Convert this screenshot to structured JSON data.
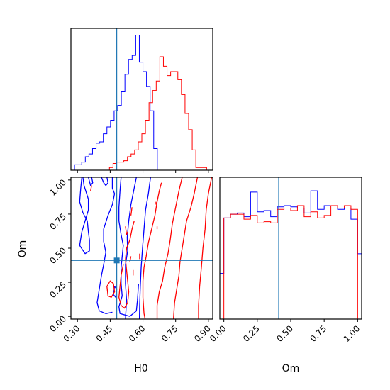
{
  "colors": {
    "blue": "#0000ff",
    "red": "#ff0000",
    "truth": "#1f77b4",
    "frame": "#000000"
  },
  "chart_data": [
    {
      "type": "histogram",
      "panel": "H0-marginal",
      "x": "H0",
      "xlim": [
        0.27,
        0.92
      ],
      "ylim": [
        0,
        1.05
      ],
      "truth": 0.48,
      "series": [
        {
          "color": "blue",
          "bins": [
            0.27,
            0.2865,
            0.303,
            0.3195,
            0.336,
            0.3525,
            0.369,
            0.3855,
            0.402,
            0.4185,
            0.435,
            0.4515,
            0.468,
            0.4845,
            0.501,
            0.5175,
            0.534,
            0.5505,
            0.567,
            0.5835,
            0.6,
            0.6165,
            0.633,
            0.6495,
            0.666
          ],
          "values": [
            0.0,
            0.04,
            0.04,
            0.06,
            0.1,
            0.12,
            0.16,
            0.2,
            0.21,
            0.27,
            0.32,
            0.37,
            0.44,
            0.48,
            0.58,
            0.71,
            0.82,
            0.85,
            1.0,
            0.8,
            0.73,
            0.62,
            0.44,
            0.16,
            0.0
          ]
        },
        {
          "color": "red",
          "bins": [
            0.43,
            0.4465,
            0.463,
            0.4795,
            0.496,
            0.5125,
            0.529,
            0.5455,
            0.562,
            0.5785,
            0.595,
            0.6115,
            0.628,
            0.6445,
            0.661,
            0.6775,
            0.694,
            0.7105,
            0.727,
            0.7435,
            0.76,
            0.7765,
            0.793,
            0.8095,
            0.826,
            0.8425,
            0.859,
            0.8755,
            0.892
          ],
          "values": [
            0.0,
            0.02,
            0.05,
            0.06,
            0.06,
            0.07,
            0.1,
            0.12,
            0.15,
            0.21,
            0.27,
            0.37,
            0.5,
            0.59,
            0.66,
            0.84,
            0.77,
            0.7,
            0.73,
            0.73,
            0.67,
            0.56,
            0.42,
            0.3,
            0.15,
            0.02,
            0.02,
            0.02,
            0.0
          ]
        }
      ]
    },
    {
      "type": "contour",
      "panel": "H0-Om-2d",
      "xlabel": "H0",
      "ylabel": "Om",
      "xlim": [
        0.27,
        0.92
      ],
      "ylim": [
        -0.02,
        1.02
      ],
      "xticks": [
        "0.30",
        "0.45",
        "0.60",
        "0.75",
        "0.90"
      ],
      "yticks": [
        "0.00",
        "0.25",
        "0.50",
        "0.75",
        "1.00"
      ],
      "truth": {
        "x": 0.48,
        "y": 0.41
      },
      "series": [
        {
          "color": "blue",
          "contours": [
            [
              [
                0.635,
                1.02
              ],
              [
                0.625,
                0.9
              ],
              [
                0.612,
                0.78
              ],
              [
                0.605,
                0.64
              ],
              [
                0.598,
                0.5
              ],
              [
                0.592,
                0.36
              ],
              [
                0.588,
                0.22
              ],
              [
                0.585,
                0.08
              ],
              [
                0.584,
                -0.02
              ]
            ],
            [
              [
                0.57,
                1.02
              ],
              [
                0.56,
                0.94
              ],
              [
                0.545,
                0.82
              ],
              [
                0.535,
                0.7
              ],
              [
                0.528,
                0.58
              ],
              [
                0.53,
                0.48
              ],
              [
                0.52,
                0.38
              ],
              [
                0.52,
                0.24
              ],
              [
                0.525,
                0.12
              ],
              [
                0.52,
                -0.02
              ]
            ],
            [
              [
                0.5,
                1.02
              ],
              [
                0.495,
                0.92
              ],
              [
                0.49,
                0.8
              ],
              [
                0.49,
                0.7
              ],
              [
                0.5,
                0.6
              ],
              [
                0.51,
                0.52
              ],
              [
                0.505,
                0.44
              ],
              [
                0.5,
                0.36
              ],
              [
                0.5,
                0.24
              ],
              [
                0.505,
                0.15
              ],
              [
                0.49,
                0.07
              ],
              [
                0.495,
                0.02
              ],
              [
                0.54,
                0.0
              ],
              [
                0.57,
                0.04
              ],
              [
                0.575,
                0.12
              ],
              [
                0.58,
                0.24
              ]
            ],
            [
              [
                0.46,
                1.02
              ],
              [
                0.46,
                0.94
              ],
              [
                0.47,
                0.9
              ],
              [
                0.46,
                0.82
              ],
              [
                0.44,
                0.74
              ],
              [
                0.42,
                0.64
              ],
              [
                0.42,
                0.55
              ],
              [
                0.43,
                0.47
              ],
              [
                0.42,
                0.38
              ],
              [
                0.41,
                0.3
              ],
              [
                0.4,
                0.2
              ],
              [
                0.39,
                0.1
              ],
              [
                0.4,
                0.04
              ],
              [
                0.43,
                0.02
              ],
              [
                0.46,
                0.03
              ]
            ],
            [
              [
                0.325,
                1.02
              ],
              [
                0.33,
                0.96
              ],
              [
                0.35,
                0.86
              ],
              [
                0.35,
                0.78
              ],
              [
                0.335,
                0.7
              ],
              [
                0.32,
                0.62
              ],
              [
                0.31,
                0.52
              ],
              [
                0.335,
                0.46
              ],
              [
                0.355,
                0.48
              ],
              [
                0.355,
                0.56
              ],
              [
                0.35,
                0.62
              ],
              [
                0.345,
                0.7
              ],
              [
                0.325,
                0.76
              ],
              [
                0.31,
                0.84
              ],
              [
                0.315,
                0.94
              ],
              [
                0.32,
                1.02
              ]
            ],
            [
              [
                0.41,
                1.02
              ],
              [
                0.42,
                0.98
              ],
              [
                0.43,
                0.96
              ],
              [
                0.44,
                0.98
              ],
              [
                0.435,
                1.02
              ]
            ],
            [
              [
                0.35,
                1.02
              ],
              [
                0.36,
                0.96
              ],
              [
                0.37,
                0.98
              ],
              [
                0.365,
                1.02
              ]
            ],
            [
              [
                0.465,
                0.16
              ],
              [
                0.47,
                0.22
              ],
              [
                0.48,
                0.2
              ],
              [
                0.475,
                0.14
              ],
              [
                0.465,
                0.16
              ]
            ]
          ]
        },
        {
          "color": "red",
          "contours": [
            [
              [
                0.915,
                1.02
              ],
              [
                0.9,
                0.9
              ],
              [
                0.89,
                0.78
              ],
              [
                0.885,
                0.64
              ],
              [
                0.875,
                0.5
              ],
              [
                0.868,
                0.36
              ],
              [
                0.86,
                0.22
              ],
              [
                0.855,
                0.08
              ],
              [
                0.855,
                -0.02
              ]
            ],
            [
              [
                0.85,
                1.02
              ],
              [
                0.835,
                0.9
              ],
              [
                0.82,
                0.8
              ],
              [
                0.8,
                0.7
              ],
              [
                0.79,
                0.6
              ],
              [
                0.78,
                0.5
              ],
              [
                0.77,
                0.4
              ],
              [
                0.765,
                0.3
              ],
              [
                0.755,
                0.2
              ],
              [
                0.745,
                0.1
              ],
              [
                0.74,
                -0.02
              ]
            ],
            [
              [
                0.78,
                1.02
              ],
              [
                0.765,
                0.92
              ],
              [
                0.75,
                0.8
              ],
              [
                0.735,
                0.68
              ],
              [
                0.725,
                0.56
              ],
              [
                0.715,
                0.46
              ],
              [
                0.7,
                0.36
              ],
              [
                0.69,
                0.26
              ],
              [
                0.675,
                0.18
              ],
              [
                0.665,
                0.08
              ],
              [
                0.665,
                -0.02
              ]
            ],
            [
              [
                0.685,
                0.98
              ],
              [
                0.675,
                0.92
              ],
              [
                0.665,
                0.84
              ],
              [
                0.655,
                0.74
              ],
              [
                0.64,
                0.64
              ],
              [
                0.625,
                0.54
              ],
              [
                0.615,
                0.44
              ],
              [
                0.605,
                0.36
              ],
              [
                0.6,
                0.26
              ],
              [
                0.6,
                0.14
              ],
              [
                0.605,
                0.02
              ],
              [
                0.61,
                -0.02
              ]
            ],
            [
              [
                0.56,
                0.7
              ],
              [
                0.55,
                0.64
              ],
              [
                0.54,
                0.56
              ],
              [
                0.525,
                0.5
              ],
              [
                0.52,
                0.42
              ],
              [
                0.525,
                0.34
              ],
              [
                0.53,
                0.26
              ],
              [
                0.535,
                0.18
              ],
              [
                0.53,
                0.1
              ],
              [
                0.515,
                0.06
              ],
              [
                0.5,
                0.08
              ],
              [
                0.49,
                0.14
              ],
              [
                0.495,
                0.22
              ],
              [
                0.5,
                0.3
              ],
              [
                0.51,
                0.38
              ]
            ],
            [
              [
                0.435,
                0.22
              ],
              [
                0.45,
                0.26
              ],
              [
                0.465,
                0.24
              ],
              [
                0.47,
                0.18
              ],
              [
                0.455,
                0.14
              ],
              [
                0.44,
                0.15
              ],
              [
                0.435,
                0.22
              ]
            ],
            [
              [
                0.52,
                0.66
              ],
              [
                0.525,
                0.6
              ],
              [
                0.53,
                0.62
              ]
            ],
            [
              [
                0.585,
                0.42
              ],
              [
                0.585,
                0.46
              ]
            ],
            [
              [
                0.66,
                0.84
              ],
              [
                0.66,
                0.82
              ]
            ],
            [
              [
                0.665,
                0.66
              ],
              [
                0.665,
                0.64
              ]
            ],
            [
              [
                0.555,
                0.34
              ],
              [
                0.555,
                0.3
              ]
            ],
            [
              [
                0.545,
                0.74
              ],
              [
                0.55,
                0.8
              ]
            ],
            [
              [
                0.54,
                0.4
              ],
              [
                0.545,
                0.44
              ]
            ],
            [
              [
                0.36,
                0.92
              ],
              [
                0.365,
                0.96
              ]
            ]
          ]
        }
      ]
    },
    {
      "type": "histogram",
      "panel": "Om-marginal",
      "x": "Om",
      "xlabel": "Om",
      "xlim": [
        -0.03,
        1.03
      ],
      "ylim": [
        0,
        1.15
      ],
      "xticks": [
        "0.00",
        "0.25",
        "0.50",
        "0.75",
        "1.00"
      ],
      "truth": 0.41,
      "series": [
        {
          "color": "blue",
          "bins": [
            -0.03,
            0.0,
            0.05,
            0.1,
            0.15,
            0.2,
            0.25,
            0.3,
            0.35,
            0.4,
            0.45,
            0.5,
            0.55,
            0.6,
            0.65,
            0.7,
            0.75,
            0.8,
            0.85,
            0.9,
            0.95,
            1.0,
            1.03
          ],
          "values": [
            0.37,
            0.82,
            0.85,
            0.86,
            0.83,
            1.03,
            0.87,
            0.88,
            0.83,
            0.91,
            0.92,
            0.91,
            0.9,
            0.86,
            1.04,
            0.89,
            0.92,
            0.92,
            0.89,
            0.9,
            0.81,
            0.53
          ]
        },
        {
          "color": "red",
          "bins": [
            0.0,
            0.05,
            0.1,
            0.15,
            0.2,
            0.25,
            0.3,
            0.35,
            0.4,
            0.45,
            0.5,
            0.55,
            0.6,
            0.65,
            0.7,
            0.75,
            0.8,
            0.85,
            0.9,
            0.95,
            1.0
          ],
          "values": [
            0.82,
            0.85,
            0.85,
            0.81,
            0.84,
            0.78,
            0.79,
            0.78,
            0.89,
            0.9,
            0.88,
            0.92,
            0.83,
            0.87,
            0.82,
            0.84,
            0.92,
            0.9,
            0.92,
            0.89
          ]
        }
      ]
    }
  ]
}
